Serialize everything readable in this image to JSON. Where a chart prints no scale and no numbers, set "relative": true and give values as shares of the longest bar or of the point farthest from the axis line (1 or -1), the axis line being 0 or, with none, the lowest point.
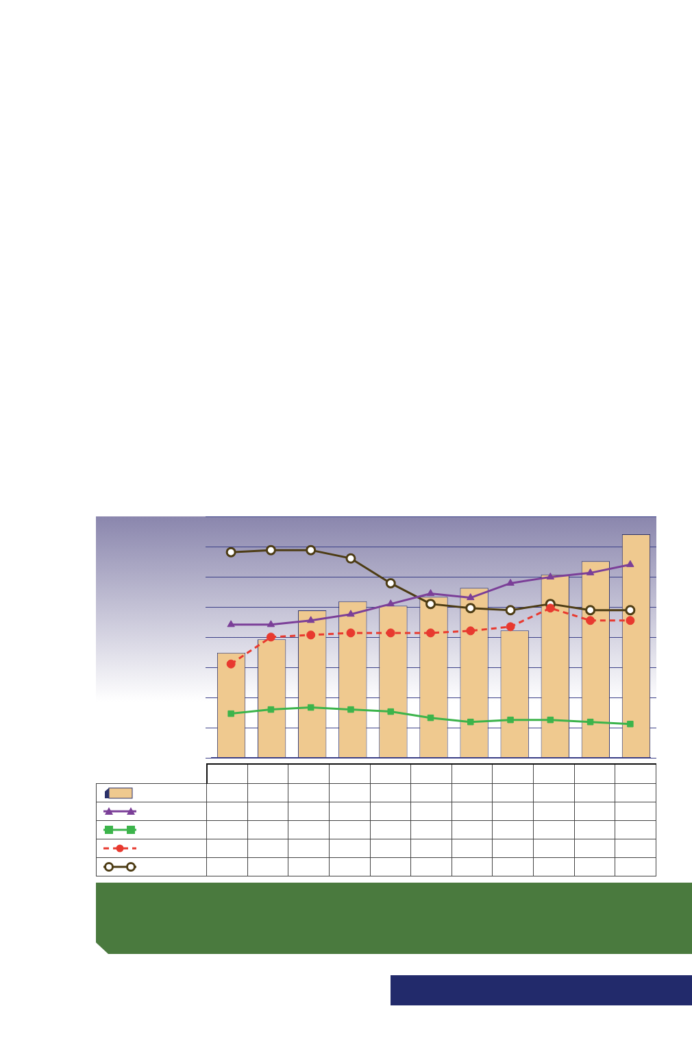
{
  "chart_data": [
    {
      "type": "bar",
      "relative": true,
      "categories": [
        null,
        null,
        null,
        null,
        null,
        null,
        null,
        null,
        null,
        null,
        null
      ],
      "grid": "y",
      "legend": false,
      "tick_labels": false,
      "series": [
        {
          "color": "#efc98f",
          "values": [
            0.47,
            0.53,
            0.66,
            0.7,
            0.68,
            0.72,
            0.76,
            0.57,
            0.82,
            0.88,
            1
          ]
        }
      ]
    },
    {
      "type": "line",
      "relative": true,
      "categories": [
        null,
        null,
        null,
        null,
        null,
        null,
        null,
        null,
        null,
        null,
        null
      ],
      "legend": false,
      "tick_labels": false,
      "series": [
        {
          "color": "#7b3f98",
          "marker": "triangle",
          "line_style": "solid",
          "values": [
            0.64,
            0.64,
            0.66,
            0.69,
            0.74,
            0.79,
            0.77,
            0.84,
            0.87,
            0.89,
            0.93
          ]
        },
        {
          "color": "#3cb44b",
          "marker": "square",
          "line_style": "solid",
          "values": [
            0.21,
            0.23,
            0.24,
            0.23,
            0.22,
            0.19,
            0.17,
            0.18,
            0.18,
            0.17,
            0.16
          ]
        },
        {
          "color": "#e8392f",
          "marker": "circle",
          "line_style": "dashed",
          "values": [
            0.45,
            0.58,
            0.59,
            0.6,
            0.6,
            0.6,
            0.61,
            0.63,
            0.72,
            0.66,
            0.66
          ]
        },
        {
          "color": "#4d3c14",
          "marker": "circle",
          "line_style": "solid",
          "values": [
            0.99,
            1,
            1,
            0.96,
            0.84,
            0.74,
            0.72,
            0.71,
            0.74,
            0.71,
            0.71
          ]
        }
      ]
    }
  ]
}
